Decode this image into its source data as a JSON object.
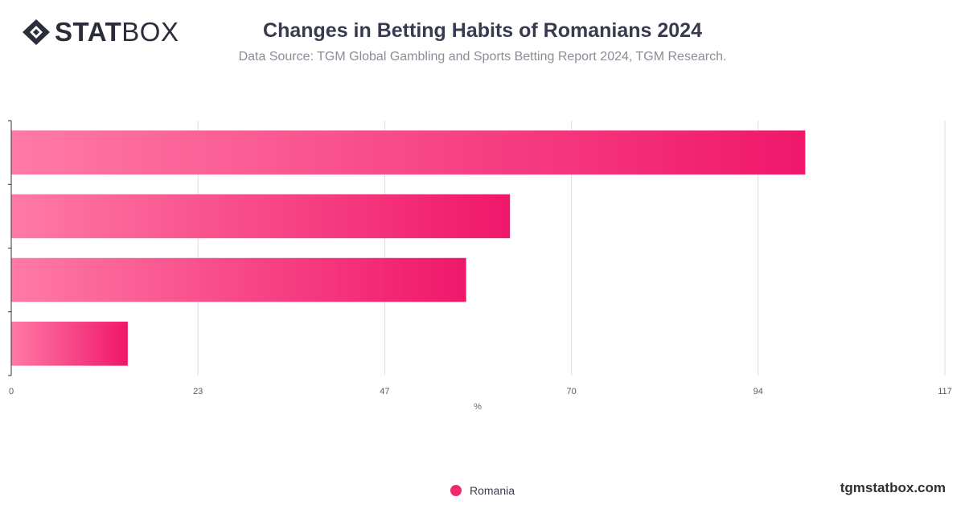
{
  "brand": {
    "logo_bold": "STAT",
    "logo_light": "BOX",
    "site": "tgmstatbox.com"
  },
  "colors": {
    "bar_start": "#ff7aa6",
    "bar_end": "#f0176a",
    "grid": "#dddddd",
    "axis": "#333333"
  },
  "chart_data": {
    "type": "bar",
    "orientation": "horizontal",
    "title": "Changes in Betting Habits of Romanians 2024",
    "subtitle": "Data Source: TGM Global Gambling and Sports Betting Report 2024, TGM Research.",
    "xlabel": "%",
    "ylabel": "",
    "xlim": [
      0,
      117
    ],
    "xticks": [
      "0",
      "23",
      "47",
      "70",
      "94",
      "117"
    ],
    "xtick_values": [
      0,
      23.4,
      46.8,
      70.2,
      93.6,
      117
    ],
    "categories": [
      "",
      "",
      "",
      ""
    ],
    "series": [
      {
        "name": "Romania",
        "values": [
          99.5,
          62.5,
          57,
          14.6
        ]
      }
    ],
    "grid": true,
    "legend": "bottom-center"
  }
}
